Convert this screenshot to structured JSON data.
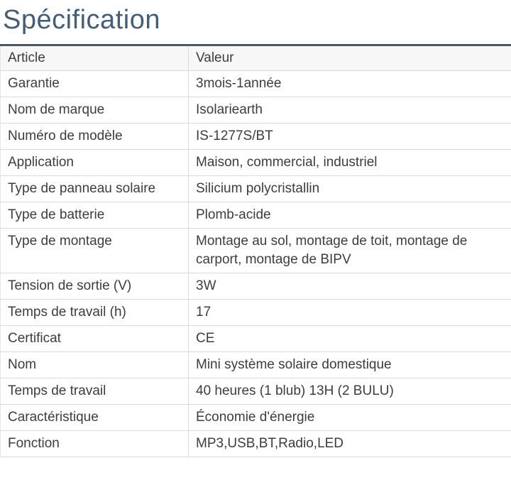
{
  "page": {
    "title": "Spécification"
  },
  "colors": {
    "title_text": "#455e77",
    "table_top_border": "#4e575f",
    "header_background": "#f7f7f8",
    "cell_border": "#d9d9d9",
    "body_text": "#3d3d3d"
  },
  "table": {
    "headers": [
      "Article",
      "Valeur"
    ],
    "rows": [
      {
        "article": "Garantie",
        "valeur": "3mois-1année"
      },
      {
        "article": "Nom de marque",
        "valeur": "Isolariearth"
      },
      {
        "article": "Numéro de modèle",
        "valeur": "IS-1277S/BT"
      },
      {
        "article": "Application",
        "valeur": "Maison, commercial, industriel"
      },
      {
        "article": "Type de panneau solaire",
        "valeur": "Silicium polycristallin"
      },
      {
        "article": "Type de batterie",
        "valeur": "Plomb-acide"
      },
      {
        "article": "Type de montage",
        "valeur": "Montage au sol, montage de toit, montage de carport, montage de BIPV"
      },
      {
        "article": "Tension de sortie (V)",
        "valeur": "3W"
      },
      {
        "article": "Temps de travail (h)",
        "valeur": "17"
      },
      {
        "article": "Certificat",
        "valeur": "CE"
      },
      {
        "article": "Nom",
        "valeur": "Mini système solaire domestique"
      },
      {
        "article": "Temps de travail",
        "valeur": "40 heures (1 blub) 13H (2 BULU)"
      },
      {
        "article": "Caractéristique",
        "valeur": "Économie d'énergie"
      },
      {
        "article": "Fonction",
        "valeur": "MP3,USB,BT,Radio,LED"
      }
    ]
  }
}
